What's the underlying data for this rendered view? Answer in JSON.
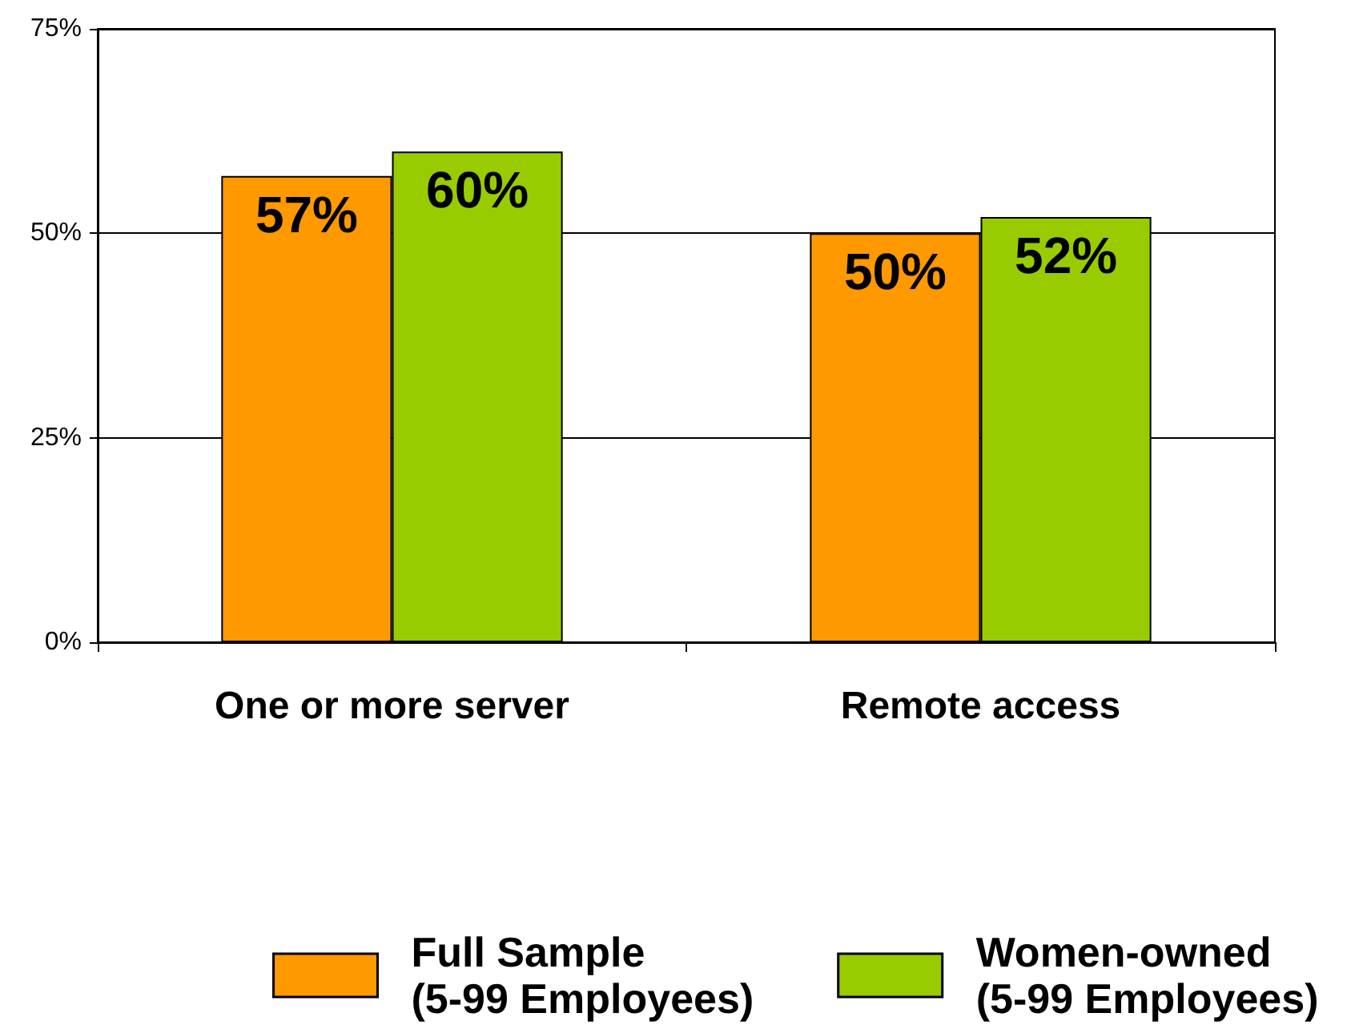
{
  "chart_data": {
    "type": "bar",
    "categories": [
      "One or more server",
      "Remote access"
    ],
    "series": [
      {
        "name": "Full Sample\n(5-99 Employees)",
        "color": "#ff9900",
        "values": [
          57,
          50
        ],
        "value_labels": [
          "57%",
          "50%"
        ]
      },
      {
        "name": "Women-owned\n(5-99 Employees)",
        "color": "#99cc00",
        "values": [
          60,
          52
        ],
        "value_labels": [
          "60%",
          "52%"
        ]
      }
    ],
    "ylim": [
      0,
      75
    ],
    "yticks": [
      {
        "value": 0,
        "label": "0%"
      },
      {
        "value": 25,
        "label": "25%"
      },
      {
        "value": 50,
        "label": "50%"
      },
      {
        "value": 75,
        "label": "75%"
      }
    ],
    "grid": "y",
    "legend": "bottom"
  }
}
